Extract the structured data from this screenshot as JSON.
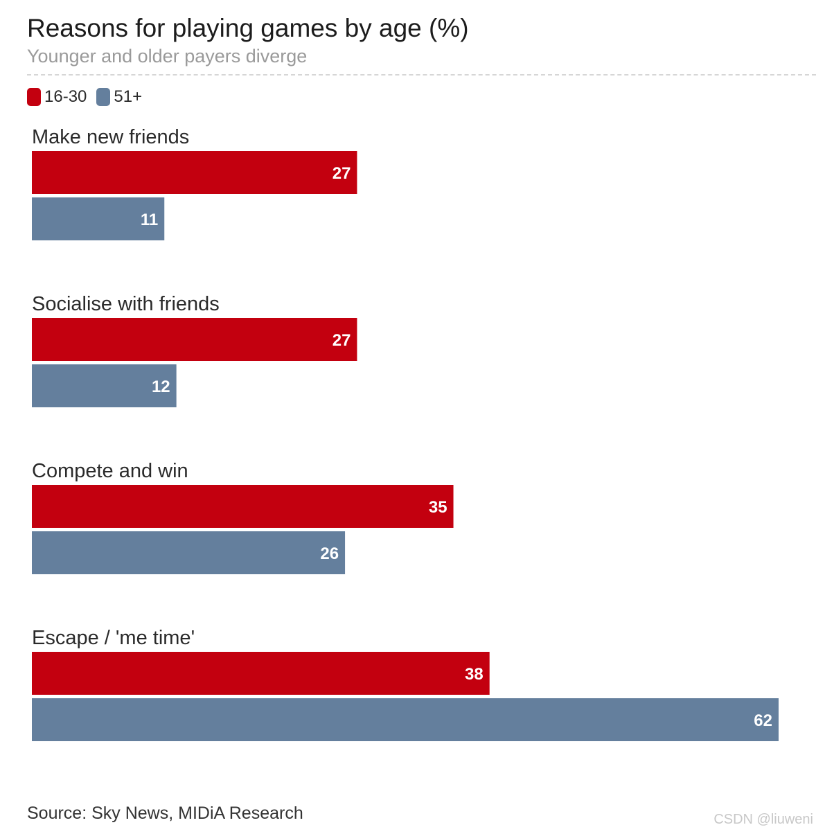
{
  "chart_data": {
    "type": "bar",
    "orientation": "horizontal",
    "title": "Reasons for playing games by age (%)",
    "subtitle": "Younger and older payers diverge",
    "categories": [
      "Make new friends",
      "Socialise with friends",
      "Compete and win",
      "Escape / 'me time'"
    ],
    "series": [
      {
        "name": "16-30",
        "color": "#c3000f",
        "values": [
          27,
          27,
          35,
          38
        ]
      },
      {
        "name": "51+",
        "color": "#647f9d",
        "values": [
          11,
          12,
          26,
          62
        ]
      }
    ],
    "xlim": [
      0,
      62
    ],
    "grid": false,
    "legend_position": "top-left",
    "source": "Source: Sky News, MIDiA Research"
  },
  "watermark": "CSDN @liuweni",
  "colors": {
    "label_text": "#2a2a2a",
    "value_text": "#ffffff"
  }
}
